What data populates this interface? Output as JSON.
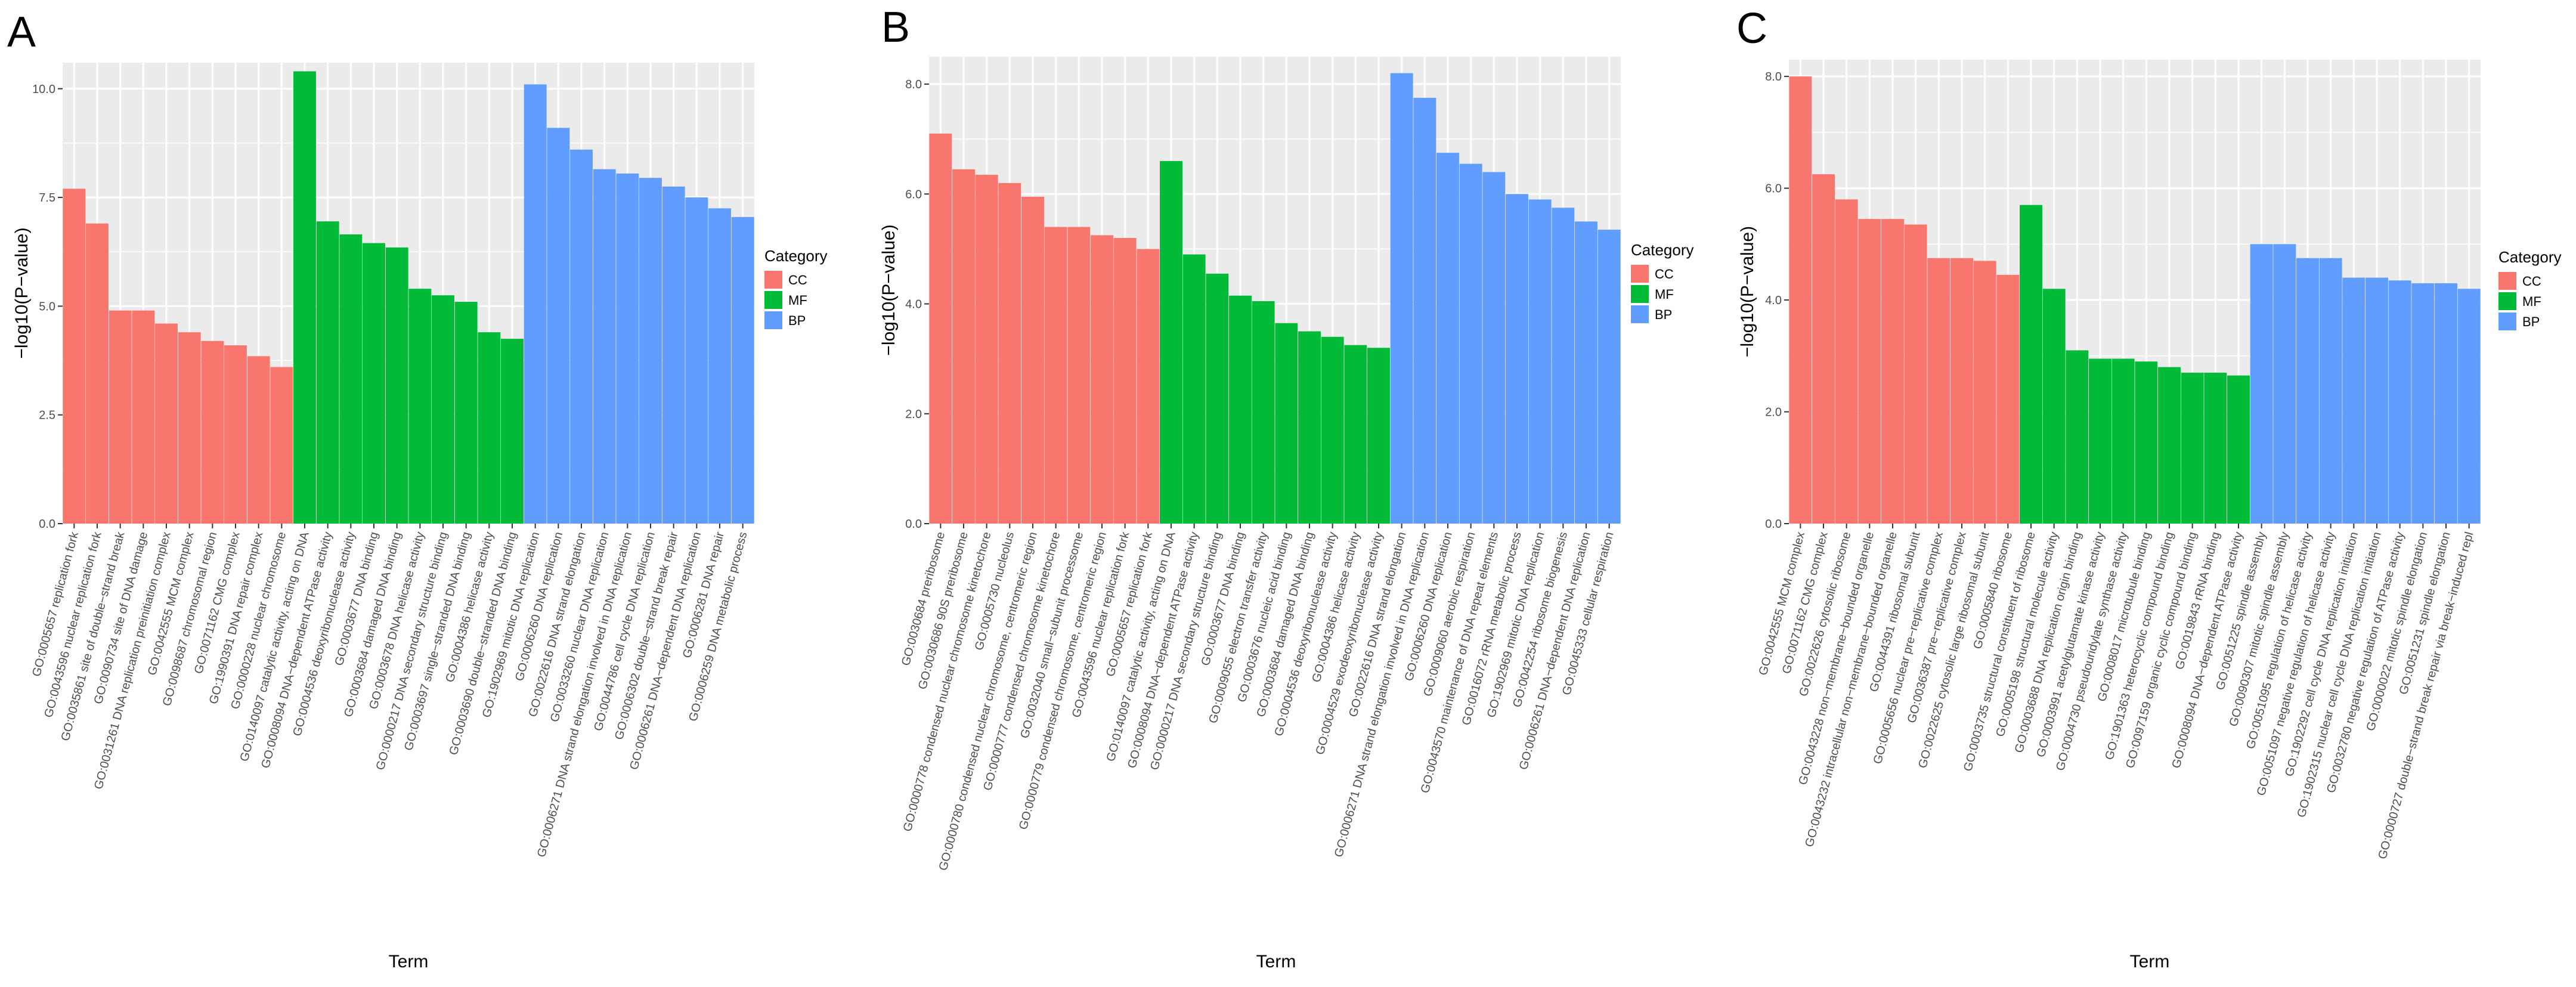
{
  "colors": {
    "CC": "#F8766D",
    "MF": "#00BA38",
    "BP": "#619CFF",
    "panel_bg": "#EBEBEB",
    "grid": "#FFFFFF"
  },
  "chart_data": [
    {
      "type": "bar",
      "panel_label": "A",
      "xlabel": "Term",
      "ylabel": "−log10(P−value)",
      "ylim": [
        0,
        10.6
      ],
      "yticks": [
        0,
        2.5,
        5,
        7.5,
        10
      ],
      "ytick_labels": [
        "0.0",
        "2.5",
        "5.0",
        "7.5",
        "10.0"
      ],
      "legend": {
        "title": "Category",
        "entries": [
          "CC",
          "MF",
          "BP"
        ],
        "position": "right"
      },
      "categories": [
        "GO:0005657 replication fork",
        "GO:0043596 nuclear replication fork",
        "GO:0035861 site of double−strand break",
        "GO:0090734 site of DNA damage",
        "GO:0031261 DNA replication preinitiation complex",
        "GO:0042555 MCM complex",
        "GO:0098687 chromosomal region",
        "GO:0071162 CMG complex",
        "GO:1990391 DNA repair complex",
        "GO:0000228 nuclear chromosome",
        "GO:0140097 catalytic activity, acting on DNA",
        "GO:0008094 DNA−dependent ATPase activity",
        "GO:0004536 deoxyribonuclease activity",
        "GO:0003677 DNA binding",
        "GO:0003684 damaged DNA binding",
        "GO:0003678 DNA helicase activity",
        "GO:0000217 DNA secondary structure binding",
        "GO:0003697 single−stranded DNA binding",
        "GO:0004386 helicase activity",
        "GO:0003690 double−stranded DNA binding",
        "GO:1902969 mitotic DNA replication",
        "GO:0006260 DNA replication",
        "GO:0022616 DNA strand elongation",
        "GO:0033260 nuclear DNA replication",
        "GO:0006271 DNA strand elongation involved in DNA replication",
        "GO:0044786 cell cycle DNA replication",
        "GO:0006302 double−strand break repair",
        "GO:0006261 DNA−dependent DNA replication",
        "GO:0006281 DNA repair",
        "GO:0006259 DNA metabolic process"
      ],
      "series_category": [
        "CC",
        "CC",
        "CC",
        "CC",
        "CC",
        "CC",
        "CC",
        "CC",
        "CC",
        "CC",
        "MF",
        "MF",
        "MF",
        "MF",
        "MF",
        "MF",
        "MF",
        "MF",
        "MF",
        "MF",
        "BP",
        "BP",
        "BP",
        "BP",
        "BP",
        "BP",
        "BP",
        "BP",
        "BP",
        "BP"
      ],
      "values": [
        7.7,
        6.9,
        4.9,
        4.9,
        4.6,
        4.4,
        4.2,
        4.1,
        3.85,
        3.6,
        10.4,
        6.95,
        6.65,
        6.45,
        6.35,
        5.4,
        5.25,
        5.1,
        4.4,
        4.25,
        10.1,
        9.1,
        8.6,
        8.15,
        8.05,
        7.95,
        7.75,
        7.5,
        7.25,
        7.05
      ]
    },
    {
      "type": "bar",
      "panel_label": "B",
      "xlabel": "Term",
      "ylabel": "−log10(P−value)",
      "ylim": [
        0,
        8.5
      ],
      "yticks": [
        0,
        2,
        4,
        6,
        8
      ],
      "ytick_labels": [
        "0.0",
        "2.0",
        "4.0",
        "6.0",
        "8.0"
      ],
      "legend": {
        "title": "Category",
        "entries": [
          "CC",
          "MF",
          "BP"
        ],
        "position": "right"
      },
      "categories": [
        "GO:0030684 preribosome",
        "GO:0030686 90S preribosome",
        "GO:0000778 condensed nuclear chromosome kinetochore",
        "GO:0005730 nucleolus",
        "GO:0000780 condensed nuclear chromosome, centromeric region",
        "GO:0000777 condensed chromosome kinetochore",
        "GO:0032040 small−subunit processome",
        "GO:0000779 condensed chromosome, centromeric region",
        "GO:0043596 nuclear replication fork",
        "GO:0005657 replication fork",
        "GO:0140097 catalytic activity, acting on DNA",
        "GO:0008094 DNA−dependent ATPase activity",
        "GO:0000217 DNA secondary structure binding",
        "GO:0003677 DNA binding",
        "GO:0009055 electron transfer activity",
        "GO:0003676 nucleic acid binding",
        "GO:0003684 damaged DNA binding",
        "GO:0004536 deoxyribonuclease activity",
        "GO:0004386 helicase activity",
        "GO:0004529 exodeoxyribonuclease activity",
        "GO:0022616 DNA strand elongation",
        "GO:0006271 DNA strand elongation involved in DNA replication",
        "GO:0006260 DNA replication",
        "GO:0009060 aerobic respiration",
        "GO:0043570 maintenance of DNA repeat elements",
        "GO:0016072 rRNA metabolic process",
        "GO:1902969 mitotic DNA replication",
        "GO:0042254 ribosome biogenesis",
        "GO:0006261 DNA−dependent DNA replication",
        "GO:0045333 cellular respiration"
      ],
      "series_category": [
        "CC",
        "CC",
        "CC",
        "CC",
        "CC",
        "CC",
        "CC",
        "CC",
        "CC",
        "CC",
        "MF",
        "MF",
        "MF",
        "MF",
        "MF",
        "MF",
        "MF",
        "MF",
        "MF",
        "MF",
        "BP",
        "BP",
        "BP",
        "BP",
        "BP",
        "BP",
        "BP",
        "BP",
        "BP",
        "BP"
      ],
      "values": [
        7.1,
        6.45,
        6.35,
        6.2,
        5.95,
        5.4,
        5.4,
        5.25,
        5.2,
        5.0,
        6.6,
        4.9,
        4.55,
        4.15,
        4.05,
        3.65,
        3.5,
        3.4,
        3.25,
        3.2,
        8.2,
        7.75,
        6.75,
        6.55,
        6.4,
        6.0,
        5.9,
        5.75,
        5.5,
        5.35
      ]
    },
    {
      "type": "bar",
      "panel_label": "C",
      "xlabel": "Term",
      "ylabel": "−log10(P−value)",
      "ylim": [
        0,
        8.3
      ],
      "yticks": [
        0,
        2,
        4,
        6,
        8
      ],
      "ytick_labels": [
        "0.0",
        "2.0",
        "4.0",
        "6.0",
        "8.0"
      ],
      "legend": {
        "title": "Category",
        "entries": [
          "CC",
          "MF",
          "BP"
        ],
        "position": "right"
      },
      "categories": [
        "GO:0042555 MCM complex",
        "GO:0071162 CMG complex",
        "GO:0022626 cytosolic ribosome",
        "GO:0043228 non−membrane−bounded organelle",
        "GO:0043232 intracellular non−membrane−bounded organelle",
        "GO:0044391 ribosomal subunit",
        "GO:0005656 nuclear pre−replicative complex",
        "GO:0036387 pre−replicative complex",
        "GO:0022625 cytosolic large ribosomal subunit",
        "GO:0005840 ribosome",
        "GO:0003735 structural constituent of ribosome",
        "GO:0005198 structural molecule activity",
        "GO:0003688 DNA replication origin binding",
        "GO:0003991 acetylglutamate kinase activity",
        "GO:0004730 pseudouridylate synthase activity",
        "GO:0008017 microtubule binding",
        "GO:1901363 heterocyclic compound binding",
        "GO:0097159 organic cyclic compound binding",
        "GO:0019843 rRNA binding",
        "GO:0008094 DNA−dependent ATPase activity",
        "GO:0051225 spindle assembly",
        "GO:0090307 mitotic spindle assembly",
        "GO:0051095 regulation of helicase activity",
        "GO:0051097 negative regulation of helicase activity",
        "GO:1902292 cell cycle DNA replication initiation",
        "GO:1902315 nuclear cell cycle DNA replication initiation",
        "GO:0032780 negative regulation of ATPase activity",
        "GO:0000022 mitotic spindle elongation",
        "GO:0051231 spindle elongation",
        "GO:0000727 double−strand break repair via break−induced repl"
      ],
      "series_category": [
        "CC",
        "CC",
        "CC",
        "CC",
        "CC",
        "CC",
        "CC",
        "CC",
        "CC",
        "CC",
        "MF",
        "MF",
        "MF",
        "MF",
        "MF",
        "MF",
        "MF",
        "MF",
        "MF",
        "MF",
        "BP",
        "BP",
        "BP",
        "BP",
        "BP",
        "BP",
        "BP",
        "BP",
        "BP",
        "BP"
      ],
      "values": [
        8.0,
        6.25,
        5.8,
        5.45,
        5.45,
        5.35,
        4.75,
        4.75,
        4.7,
        4.45,
        5.7,
        4.2,
        3.1,
        2.95,
        2.95,
        2.9,
        2.8,
        2.7,
        2.7,
        2.65,
        5.0,
        5.0,
        4.75,
        4.75,
        4.4,
        4.4,
        4.35,
        4.3,
        4.3,
        4.2
      ]
    }
  ]
}
